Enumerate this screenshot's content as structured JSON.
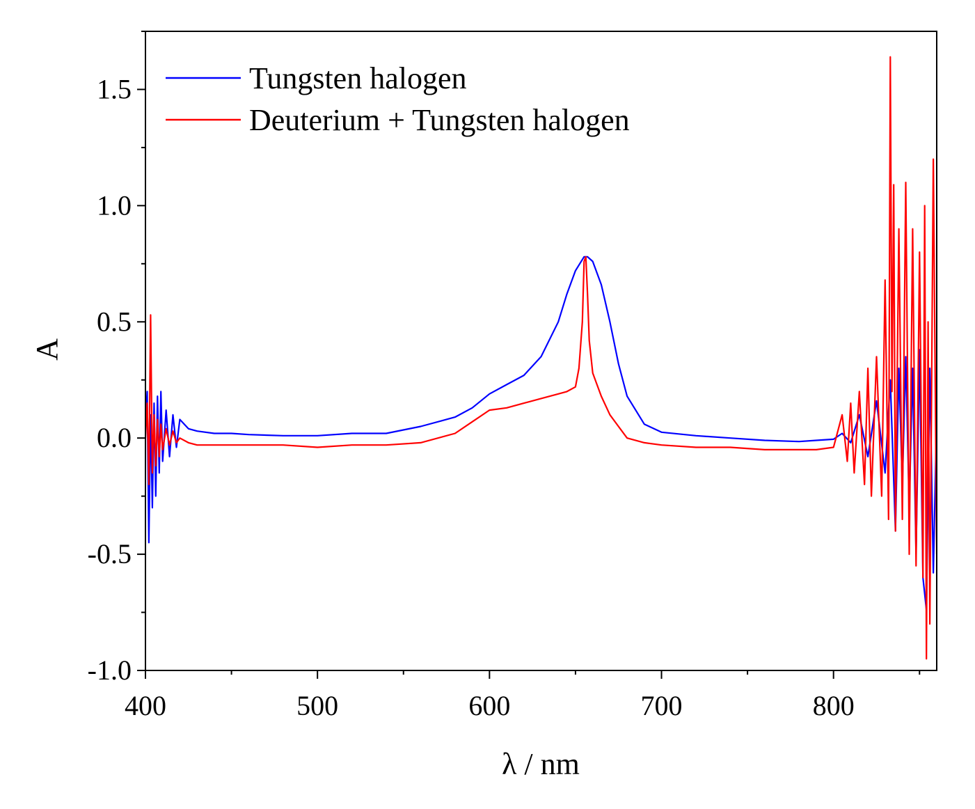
{
  "chart_data": {
    "type": "line",
    "title": "",
    "xlabel": "λ / nm",
    "ylabel": "A",
    "xlim": [
      400,
      860
    ],
    "ylim": [
      -1.0,
      1.75
    ],
    "x_ticks": [
      400,
      500,
      600,
      700,
      800
    ],
    "x_tick_labels": [
      "400",
      "500",
      "600",
      "700",
      "800"
    ],
    "y_ticks": [
      -1.0,
      -0.5,
      0.0,
      0.5,
      1.0,
      1.5
    ],
    "y_tick_labels": [
      "-1.0",
      "-0.5",
      "0.0",
      "0.5",
      "1.0",
      "1.5"
    ],
    "legend_position": "top-left",
    "grid": false,
    "series": [
      {
        "name": "Tungsten halogen",
        "color": "#0000ff",
        "x": [
          400,
          401,
          402,
          403,
          404,
          405,
          406,
          407,
          408,
          409,
          410,
          412,
          414,
          416,
          418,
          420,
          425,
          430,
          440,
          450,
          460,
          480,
          500,
          520,
          540,
          560,
          580,
          590,
          600,
          610,
          620,
          630,
          640,
          645,
          650,
          655,
          657,
          660,
          665,
          670,
          675,
          680,
          690,
          700,
          720,
          740,
          760,
          780,
          790,
          800,
          805,
          810,
          815,
          820,
          825,
          830,
          833,
          836,
          838,
          840,
          842,
          844,
          846,
          848,
          850,
          852,
          854,
          856,
          858,
          860
        ],
        "y": [
          0.05,
          0.2,
          -0.45,
          0.1,
          -0.3,
          0.15,
          -0.25,
          0.18,
          -0.15,
          0.2,
          -0.1,
          0.12,
          -0.08,
          0.1,
          -0.04,
          0.08,
          0.04,
          0.03,
          0.02,
          0.02,
          0.015,
          0.01,
          0.01,
          0.02,
          0.02,
          0.05,
          0.09,
          0.13,
          0.19,
          0.23,
          0.27,
          0.35,
          0.5,
          0.62,
          0.72,
          0.78,
          0.78,
          0.76,
          0.66,
          0.5,
          0.32,
          0.18,
          0.06,
          0.025,
          0.01,
          0.0,
          -0.01,
          -0.015,
          -0.01,
          -0.005,
          0.02,
          -0.02,
          0.1,
          -0.08,
          0.16,
          -0.15,
          0.25,
          -0.4,
          0.3,
          -0.2,
          0.35,
          -0.3,
          0.3,
          -0.5,
          0.38,
          -0.6,
          -0.74,
          0.3,
          -0.58,
          0.1
        ]
      },
      {
        "name": "Deuterium + Tungsten halogen",
        "color": "#ff0000",
        "x": [
          400,
          401,
          402,
          403,
          404,
          405,
          406,
          407,
          408,
          409,
          410,
          412,
          414,
          416,
          418,
          420,
          425,
          430,
          440,
          450,
          460,
          480,
          500,
          520,
          540,
          560,
          580,
          590,
          600,
          610,
          620,
          630,
          640,
          645,
          650,
          652,
          654,
          655,
          656,
          657,
          658,
          660,
          662,
          665,
          670,
          675,
          680,
          690,
          700,
          720,
          740,
          760,
          780,
          790,
          800,
          805,
          808,
          810,
          812,
          815,
          818,
          820,
          822,
          825,
          828,
          830,
          832,
          833,
          834,
          835,
          836,
          838,
          840,
          842,
          844,
          846,
          848,
          850,
          852,
          853,
          854,
          855,
          856,
          858,
          860
        ],
        "y": [
          0.0,
          0.15,
          -0.2,
          0.53,
          -0.15,
          0.1,
          -0.12,
          0.08,
          -0.08,
          0.06,
          -0.05,
          0.04,
          -0.03,
          0.03,
          -0.02,
          0.0,
          -0.02,
          -0.03,
          -0.03,
          -0.03,
          -0.03,
          -0.03,
          -0.04,
          -0.03,
          -0.03,
          -0.02,
          0.02,
          0.07,
          0.12,
          0.13,
          0.15,
          0.17,
          0.19,
          0.2,
          0.22,
          0.3,
          0.5,
          0.76,
          0.78,
          0.62,
          0.42,
          0.28,
          0.24,
          0.18,
          0.1,
          0.05,
          0.0,
          -0.02,
          -0.03,
          -0.04,
          -0.04,
          -0.05,
          -0.05,
          -0.05,
          -0.04,
          0.1,
          -0.1,
          0.15,
          -0.15,
          0.2,
          -0.2,
          0.3,
          -0.25,
          0.35,
          -0.25,
          0.68,
          -0.35,
          1.64,
          0.2,
          1.09,
          -0.4,
          0.9,
          -0.35,
          1.1,
          -0.5,
          0.9,
          -0.55,
          0.8,
          -0.6,
          1.0,
          -0.95,
          0.5,
          -0.8,
          1.2,
          -0.5
        ]
      }
    ]
  }
}
